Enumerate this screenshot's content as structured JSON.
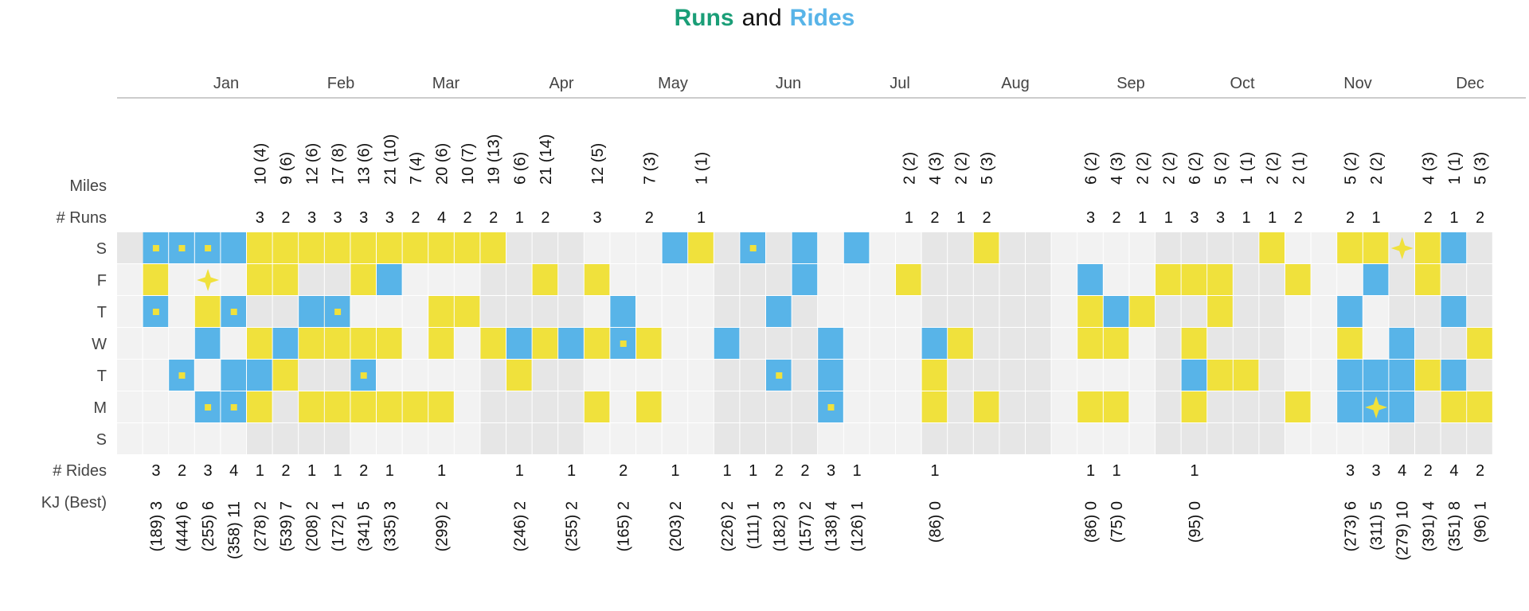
{
  "title": {
    "word1": "Runs",
    "word2": "and",
    "word3": "Rides"
  },
  "colors": {
    "run": "#f0e13c",
    "ride": "#58b4e8",
    "title_runs": "#1a9e77",
    "title_rides": "#58b4e8",
    "bg_a": "#f2f2f2",
    "bg_b": "#e6e6e6"
  },
  "chart_data": {
    "type": "heatmap",
    "months": [
      "Jan",
      "Feb",
      "Mar",
      "Apr",
      "May",
      "Jun",
      "Jul",
      "Aug",
      "Sep",
      "Oct",
      "Nov",
      "Dec"
    ],
    "days": [
      "S",
      "F",
      "T",
      "W",
      "T",
      "M",
      "S"
    ],
    "row_labels": {
      "miles": "Miles",
      "runs": "# Runs",
      "rides": "# Rides",
      "kj": "KJ (Best)"
    },
    "weeks": 53,
    "miles": {
      "5": "10 (4)",
      "6": "9 (6)",
      "7": "12 (6)",
      "8": "17 (8)",
      "9": "13 (6)",
      "10": "21 (10)",
      "11": "7 (4)",
      "12": "20 (6)",
      "13": "10 (7)",
      "14": "19 (13)",
      "15": "6 (6)",
      "16": "21 (14)",
      "18": "12 (5)",
      "20": "7 (3)",
      "22": "1 (1)",
      "30": "2 (2)",
      "31": "4 (3)",
      "32": "2 (2)",
      "33": "5 (3)",
      "37": "6 (2)",
      "38": "4 (3)",
      "39": "2 (2)",
      "40": "2 (2)",
      "41": "6 (2)",
      "42": "5 (2)",
      "43": "1 (1)",
      "44": "2 (2)",
      "45": "2 (1)",
      "47": "5 (2)",
      "48": "2 (2)",
      "50": "4 (3)",
      "51": "1 (1)",
      "52": "5 (3)"
    },
    "num_runs": {
      "5": "3",
      "6": "2",
      "7": "3",
      "8": "3",
      "9": "3",
      "10": "3",
      "11": "2",
      "12": "4",
      "13": "2",
      "14": "2",
      "15": "1",
      "16": "2",
      "18": "3",
      "20": "2",
      "22": "1",
      "30": "1",
      "31": "2",
      "32": "1",
      "33": "2",
      "37": "3",
      "38": "2",
      "39": "1",
      "40": "1",
      "41": "3",
      "42": "3",
      "43": "1",
      "44": "1",
      "45": "2",
      "47": "2",
      "48": "1",
      "50": "2",
      "51": "1",
      "52": "2"
    },
    "num_rides": {
      "1": "3",
      "2": "2",
      "3": "3",
      "4": "4",
      "5": "1",
      "6": "2",
      "7": "1",
      "8": "1",
      "9": "2",
      "10": "1",
      "12": "1",
      "15": "1",
      "17": "1",
      "19": "2",
      "21": "1",
      "23": "1",
      "24": "1",
      "25": "2",
      "26": "2",
      "27": "3",
      "28": "1",
      "31": "1",
      "37": "1",
      "38": "1",
      "41": "1",
      "47": "3",
      "48": "3",
      "49": "4",
      "50": "2",
      "51": "4",
      "52": "2"
    },
    "kj": {
      "1": "(189) 3",
      "2": "(444) 6",
      "3": "(255) 6",
      "4": "(358) 11",
      "5": "(278) 2",
      "6": "(539) 7",
      "7": "(208) 2",
      "8": "(172) 1",
      "9": "(341) 5",
      "10": "(335) 3",
      "12": "(299) 2",
      "15": "(246) 2",
      "17": "(255) 2",
      "19": "(165) 2",
      "21": "(203) 2",
      "23": "(226) 2",
      "24": "(111) 1",
      "25": "(182) 3",
      "26": "(157) 2",
      "27": "(138) 4",
      "28": "(126) 1",
      "31": "(86) 0",
      "37": "(86) 0",
      "38": "(75) 0",
      "41": "(95) 0",
      "47": "(273) 6",
      "48": "(311) 5",
      "49": "(279) 10",
      "50": "(391) 4",
      "51": "(351) 8",
      "52": "(96) 1"
    },
    "runs": [
      [
        0,
        5
      ],
      [
        0,
        6
      ],
      [
        0,
        7
      ],
      [
        0,
        8
      ],
      [
        0,
        9
      ],
      [
        0,
        10
      ],
      [
        0,
        11
      ],
      [
        0,
        12
      ],
      [
        0,
        13
      ],
      [
        0,
        14
      ],
      [
        0,
        22
      ],
      [
        0,
        33
      ],
      [
        0,
        44
      ],
      [
        0,
        47
      ],
      [
        0,
        48
      ],
      [
        0,
        50
      ],
      [
        1,
        1
      ],
      [
        1,
        5
      ],
      [
        1,
        6
      ],
      [
        1,
        9
      ],
      [
        1,
        16
      ],
      [
        1,
        18
      ],
      [
        1,
        30
      ],
      [
        1,
        40
      ],
      [
        1,
        41
      ],
      [
        1,
        42
      ],
      [
        1,
        45
      ],
      [
        1,
        50
      ],
      [
        2,
        3
      ],
      [
        2,
        8
      ],
      [
        2,
        12
      ],
      [
        2,
        13
      ],
      [
        2,
        37
      ],
      [
        2,
        39
      ],
      [
        2,
        42
      ],
      [
        3,
        5
      ],
      [
        3,
        7
      ],
      [
        3,
        8
      ],
      [
        3,
        9
      ],
      [
        3,
        10
      ],
      [
        3,
        12
      ],
      [
        3,
        14
      ],
      [
        3,
        16
      ],
      [
        3,
        18
      ],
      [
        3,
        19
      ],
      [
        3,
        20
      ],
      [
        3,
        32
      ],
      [
        3,
        37
      ],
      [
        3,
        38
      ],
      [
        3,
        41
      ],
      [
        3,
        47
      ],
      [
        3,
        52
      ],
      [
        4,
        6
      ],
      [
        4,
        15
      ],
      [
        4,
        31
      ],
      [
        4,
        42
      ],
      [
        4,
        43
      ],
      [
        4,
        50
      ],
      [
        5,
        5
      ],
      [
        5,
        7
      ],
      [
        5,
        8
      ],
      [
        5,
        9
      ],
      [
        5,
        10
      ],
      [
        5,
        11
      ],
      [
        5,
        12
      ],
      [
        5,
        18
      ],
      [
        5,
        20
      ],
      [
        5,
        31
      ],
      [
        5,
        33
      ],
      [
        5,
        37
      ],
      [
        5,
        38
      ],
      [
        5,
        41
      ],
      [
        5,
        45
      ],
      [
        5,
        51
      ],
      [
        5,
        52
      ]
    ],
    "rides": [
      [
        0,
        1
      ],
      [
        0,
        2
      ],
      [
        0,
        3
      ],
      [
        0,
        4
      ],
      [
        0,
        21
      ],
      [
        0,
        24
      ],
      [
        0,
        26
      ],
      [
        0,
        28
      ],
      [
        0,
        51
      ],
      [
        1,
        10
      ],
      [
        1,
        26
      ],
      [
        1,
        37
      ],
      [
        1,
        48
      ],
      [
        2,
        1
      ],
      [
        2,
        4
      ],
      [
        2,
        7
      ],
      [
        2,
        8
      ],
      [
        2,
        19
      ],
      [
        2,
        25
      ],
      [
        2,
        38
      ],
      [
        2,
        47
      ],
      [
        2,
        51
      ],
      [
        3,
        3
      ],
      [
        3,
        6
      ],
      [
        3,
        15
      ],
      [
        3,
        17
      ],
      [
        3,
        19
      ],
      [
        3,
        23
      ],
      [
        3,
        27
      ],
      [
        3,
        31
      ],
      [
        3,
        49
      ],
      [
        4,
        2
      ],
      [
        4,
        4
      ],
      [
        4,
        5
      ],
      [
        4,
        9
      ],
      [
        4,
        25
      ],
      [
        4,
        27
      ],
      [
        4,
        41
      ],
      [
        4,
        47
      ],
      [
        4,
        48
      ],
      [
        4,
        49
      ],
      [
        4,
        51
      ],
      [
        5,
        3
      ],
      [
        5,
        4
      ],
      [
        5,
        27
      ],
      [
        5,
        47
      ],
      [
        5,
        48
      ],
      [
        5,
        49
      ]
    ],
    "ride_markers_small": [
      [
        0,
        1
      ],
      [
        0,
        2
      ],
      [
        0,
        3
      ],
      [
        0,
        24
      ],
      [
        2,
        1
      ],
      [
        2,
        4
      ],
      [
        2,
        8
      ],
      [
        3,
        19
      ],
      [
        4,
        2
      ],
      [
        4,
        9
      ],
      [
        4,
        25
      ],
      [
        5,
        3
      ],
      [
        5,
        4
      ],
      [
        5,
        27
      ]
    ],
    "star_markers": [
      [
        0,
        9
      ],
      [
        1,
        3
      ],
      [
        1,
        6
      ],
      [
        2,
        3
      ],
      [
        2,
        12
      ],
      [
        0,
        49
      ],
      [
        4,
        50
      ],
      [
        5,
        48
      ]
    ]
  }
}
